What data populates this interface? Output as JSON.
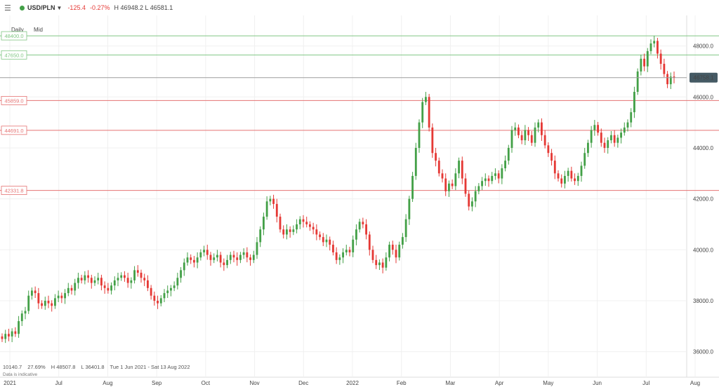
{
  "header": {
    "symbol": "USD/PLN",
    "change": "-125.4",
    "change_pct": "-0.27%",
    "high_low": "H 46948.2 L 46581.1",
    "accent_down": "#e53935",
    "accent_up": "#43a047"
  },
  "toolbar": {
    "interval": "Daily",
    "price_type": "Mid"
  },
  "footer": {
    "range_pts": "10140.7",
    "range_pct": "27.69%",
    "high": "H 48507.8",
    "low": "L 36401.8",
    "dates": "Tue 1 Jun 2021 - Sat 13 Aug 2022",
    "note": "Data is indicative"
  },
  "chart_data": {
    "type": "candlestick",
    "ylim": [
      35000,
      49200
    ],
    "yticks": [
      "48000.0",
      "46000.0",
      "44000.0",
      "42000.0",
      "40000.0",
      "38000.0",
      "36000.0"
    ],
    "xticks": [
      "2021",
      "Jul",
      "Aug",
      "Sep",
      "Oct",
      "Nov",
      "Dec",
      "2022",
      "Feb",
      "Mar",
      "Apr",
      "May",
      "Jun",
      "Jul",
      "Aug"
    ],
    "current_price": "46758.1",
    "resistance_levels": [
      "48400.0",
      "47650.0"
    ],
    "support_levels": [
      "45859.0",
      "44691.0",
      "42331.8"
    ],
    "colors": {
      "up": "#43a047",
      "down": "#e53935",
      "support": "#e57373",
      "resistance": "#81c784",
      "current": "#455a64"
    },
    "candles": [
      [
        36600,
        36500
      ],
      [
        36500,
        36700
      ],
      [
        36700,
        36600
      ],
      [
        36600,
        36800
      ],
      [
        36800,
        36700
      ],
      [
        36700,
        37200
      ],
      [
        37200,
        37500
      ],
      [
        37500,
        37600
      ],
      [
        37600,
        38200
      ],
      [
        38200,
        38400
      ],
      [
        38400,
        38300
      ],
      [
        38300,
        37900
      ],
      [
        37900,
        37800
      ],
      [
        37800,
        38000
      ],
      [
        38000,
        37900
      ],
      [
        37900,
        37800
      ],
      [
        37800,
        38100
      ],
      [
        38100,
        38200
      ],
      [
        38200,
        38100
      ],
      [
        38100,
        38300
      ],
      [
        38300,
        38500
      ],
      [
        38500,
        38400
      ],
      [
        38400,
        38700
      ],
      [
        38700,
        38900
      ],
      [
        38900,
        38800
      ],
      [
        38800,
        39000
      ],
      [
        39000,
        38900
      ],
      [
        38900,
        38700
      ],
      [
        38700,
        38800
      ],
      [
        38800,
        38900
      ],
      [
        38900,
        38600
      ],
      [
        38600,
        38500
      ],
      [
        38500,
        38400
      ],
      [
        38400,
        38600
      ],
      [
        38600,
        38800
      ],
      [
        38800,
        38900
      ],
      [
        38900,
        39000
      ],
      [
        39000,
        38900
      ],
      [
        38900,
        38700
      ],
      [
        38700,
        38800
      ],
      [
        38800,
        39200
      ],
      [
        39200,
        39100
      ],
      [
        39100,
        38900
      ],
      [
        38900,
        38800
      ],
      [
        38800,
        38500
      ],
      [
        38500,
        38200
      ],
      [
        38200,
        38000
      ],
      [
        38000,
        37900
      ],
      [
        37900,
        38100
      ],
      [
        38100,
        38300
      ],
      [
        38300,
        38400
      ],
      [
        38400,
        38500
      ],
      [
        38500,
        38600
      ],
      [
        38600,
        38900
      ],
      [
        38900,
        39200
      ],
      [
        39200,
        39500
      ],
      [
        39500,
        39700
      ],
      [
        39700,
        39600
      ],
      [
        39600,
        39500
      ],
      [
        39500,
        39700
      ],
      [
        39700,
        39900
      ],
      [
        39900,
        40000
      ],
      [
        40000,
        39800
      ],
      [
        39800,
        39600
      ],
      [
        39600,
        39700
      ],
      [
        39700,
        39800
      ],
      [
        39800,
        39500
      ],
      [
        39500,
        39400
      ],
      [
        39400,
        39600
      ],
      [
        39600,
        39800
      ],
      [
        39800,
        39700
      ],
      [
        39700,
        39600
      ],
      [
        39600,
        39800
      ],
      [
        39800,
        39900
      ],
      [
        39900,
        39700
      ],
      [
        39700,
        39600
      ],
      [
        39600,
        39800
      ],
      [
        39800,
        40300
      ],
      [
        40300,
        40800
      ],
      [
        40800,
        41300
      ],
      [
        41300,
        41900
      ],
      [
        41900,
        42000
      ],
      [
        42000,
        41800
      ],
      [
        41800,
        41300
      ],
      [
        41300,
        40800
      ],
      [
        40800,
        40600
      ],
      [
        40600,
        40800
      ],
      [
        40800,
        40700
      ],
      [
        40700,
        40800
      ],
      [
        40800,
        41000
      ],
      [
        41000,
        41200
      ],
      [
        41200,
        41100
      ],
      [
        41100,
        41000
      ],
      [
        41000,
        40900
      ],
      [
        40900,
        40800
      ],
      [
        40800,
        40600
      ],
      [
        40600,
        40500
      ],
      [
        40500,
        40300
      ],
      [
        40300,
        40400
      ],
      [
        40400,
        40200
      ],
      [
        40200,
        39900
      ],
      [
        39900,
        39600
      ],
      [
        39600,
        39700
      ],
      [
        39700,
        39900
      ],
      [
        39900,
        40000
      ],
      [
        40000,
        39900
      ],
      [
        39900,
        40400
      ],
      [
        40400,
        40800
      ],
      [
        40800,
        41100
      ],
      [
        41100,
        41000
      ],
      [
        41000,
        40600
      ],
      [
        40600,
        40000
      ],
      [
        40000,
        39600
      ],
      [
        39600,
        39400
      ],
      [
        39400,
        39500
      ],
      [
        39500,
        39300
      ],
      [
        39300,
        39700
      ],
      [
        39700,
        40200
      ],
      [
        40200,
        40000
      ],
      [
        40000,
        39700
      ],
      [
        39700,
        40200
      ],
      [
        40200,
        40500
      ],
      [
        40500,
        41200
      ],
      [
        41200,
        42000
      ],
      [
        42000,
        42900
      ],
      [
        42900,
        44000
      ],
      [
        44000,
        45000
      ],
      [
        45000,
        45800
      ],
      [
        45800,
        46000
      ],
      [
        46000,
        44800
      ],
      [
        44800,
        43800
      ],
      [
        43800,
        43500
      ],
      [
        43500,
        43000
      ],
      [
        43000,
        42800
      ],
      [
        42800,
        42300
      ],
      [
        42300,
        42600
      ],
      [
        42600,
        42500
      ],
      [
        42500,
        43000
      ],
      [
        43000,
        43500
      ],
      [
        43500,
        42800
      ],
      [
        42800,
        42200
      ],
      [
        42200,
        41700
      ],
      [
        41700,
        41900
      ],
      [
        41900,
        42300
      ],
      [
        42300,
        42500
      ],
      [
        42500,
        42700
      ],
      [
        42700,
        42800
      ],
      [
        42800,
        42700
      ],
      [
        42700,
        42900
      ],
      [
        42900,
        43000
      ],
      [
        43000,
        42800
      ],
      [
        42800,
        43200
      ],
      [
        43200,
        43500
      ],
      [
        43500,
        44000
      ],
      [
        44000,
        44700
      ],
      [
        44700,
        44800
      ],
      [
        44800,
        44500
      ],
      [
        44500,
        44300
      ],
      [
        44300,
        44700
      ],
      [
        44700,
        44500
      ],
      [
        44500,
        44200
      ],
      [
        44200,
        44800
      ],
      [
        44800,
        45000
      ],
      [
        45000,
        44500
      ],
      [
        44500,
        44100
      ],
      [
        44100,
        43800
      ],
      [
        43800,
        43500
      ],
      [
        43500,
        43000
      ],
      [
        43000,
        42800
      ],
      [
        42800,
        42600
      ],
      [
        42600,
        42900
      ],
      [
        42900,
        43100
      ],
      [
        43100,
        42800
      ],
      [
        42800,
        42700
      ],
      [
        42700,
        42900
      ],
      [
        42900,
        43300
      ],
      [
        43300,
        43800
      ],
      [
        43800,
        44200
      ],
      [
        44200,
        44700
      ],
      [
        44700,
        44900
      ],
      [
        44900,
        44600
      ],
      [
        44600,
        44200
      ],
      [
        44200,
        44000
      ],
      [
        44000,
        44300
      ],
      [
        44300,
        44500
      ],
      [
        44500,
        44200
      ],
      [
        44200,
        44400
      ],
      [
        44400,
        44600
      ],
      [
        44600,
        44800
      ],
      [
        44800,
        45000
      ],
      [
        45000,
        45400
      ],
      [
        45400,
        46200
      ],
      [
        46200,
        47000
      ],
      [
        47000,
        47500
      ],
      [
        47500,
        47200
      ],
      [
        47200,
        47800
      ],
      [
        47800,
        48100
      ],
      [
        48100,
        48200
      ],
      [
        48200,
        47700
      ],
      [
        47700,
        47300
      ],
      [
        47300,
        46900
      ],
      [
        46900,
        46500
      ],
      [
        46500,
        46800
      ],
      [
        46800,
        46758
      ]
    ]
  }
}
